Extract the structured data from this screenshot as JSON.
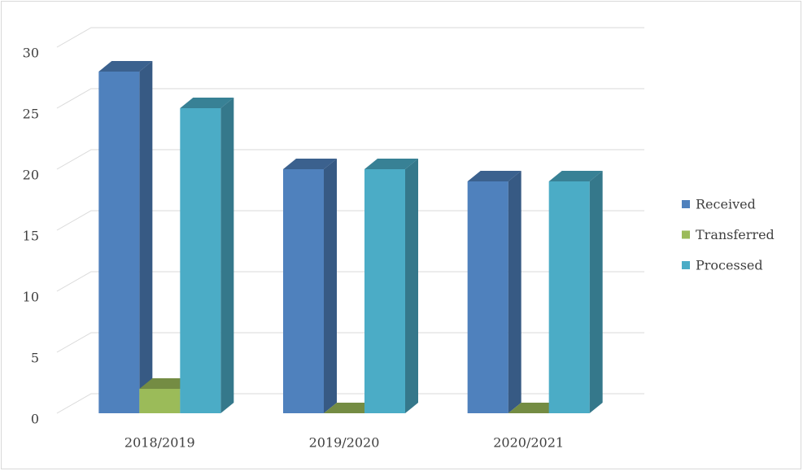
{
  "chart_data": {
    "type": "bar3d",
    "categories": [
      "2018/2019",
      "2019/2020",
      "2020/2021"
    ],
    "series": [
      {
        "name": "Received",
        "color": "#4f81bd",
        "values": [
          28,
          20,
          19
        ]
      },
      {
        "name": "Transferred",
        "color": "#9bbb59",
        "values": [
          2,
          0,
          0
        ]
      },
      {
        "name": "Processed",
        "color": "#4bacc6",
        "values": [
          25,
          20,
          19
        ]
      }
    ],
    "ylim": [
      0,
      30
    ],
    "yticks": [
      0,
      5,
      10,
      15,
      20,
      25,
      30
    ],
    "grid": true,
    "legend": "right"
  }
}
